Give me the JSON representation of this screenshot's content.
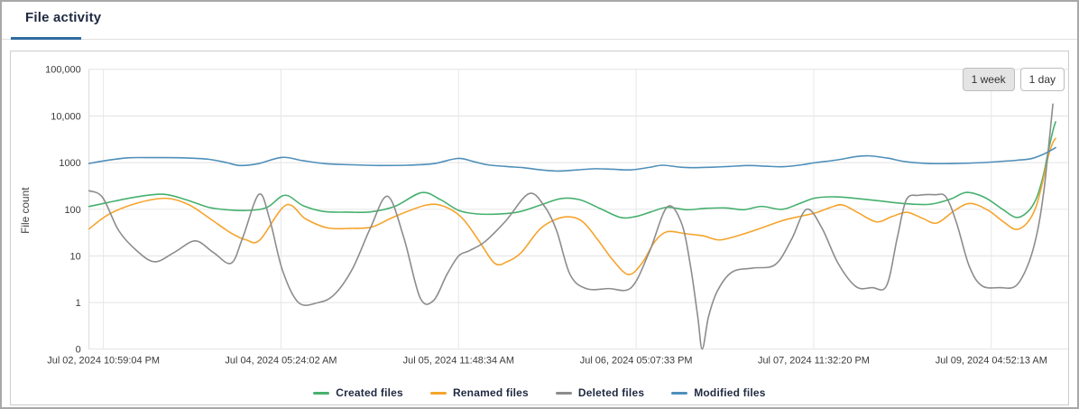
{
  "header": {
    "tabs": [
      {
        "label": "File activity",
        "active": true
      }
    ]
  },
  "controls": {
    "range_buttons": [
      {
        "label": "1 week",
        "active": true
      },
      {
        "label": "1 day",
        "active": false
      }
    ]
  },
  "chart_data": {
    "type": "line",
    "title": "File activity",
    "xlabel": "",
    "ylabel": "File count",
    "yscale": "log",
    "grid": true,
    "legend_position": "bottom",
    "ytick_labels": [
      "100,000",
      "10,000",
      "1000",
      "100",
      "10",
      "1",
      "0"
    ],
    "ytick_values": [
      100000,
      10000,
      1000,
      100,
      10,
      1,
      0
    ],
    "xticks": [
      {
        "pos": 113.0,
        "label": "Jul 02, 2024 10:59:04 PM"
      },
      {
        "pos": 310.5,
        "label": "Jul 04, 2024 05:24:02 AM"
      },
      {
        "pos": 508.0,
        "label": "Jul 05, 2024 11:48:34 AM"
      },
      {
        "pos": 705.5,
        "label": "Jul 06, 2024 05:07:33 PM"
      },
      {
        "pos": 903.0,
        "label": "Jul 07, 2024 11:32:20 PM"
      },
      {
        "pos": 1100.5,
        "label": "Jul 09, 2024 04:52:13 AM"
      }
    ],
    "x_units": "pixel column of source plot (plot spans 97 to 1188, data ends at 1172)",
    "series": [
      {
        "name": "Created files",
        "color": "#46b06e",
        "points": [
          [
            97,
            115
          ],
          [
            118,
            140
          ],
          [
            150,
            185
          ],
          [
            180,
            210
          ],
          [
            205,
            160
          ],
          [
            230,
            110
          ],
          [
            252,
            97
          ],
          [
            275,
            95
          ],
          [
            295,
            110
          ],
          [
            315,
            200
          ],
          [
            335,
            120
          ],
          [
            358,
            90
          ],
          [
            385,
            87
          ],
          [
            410,
            88
          ],
          [
            437,
            115
          ],
          [
            467,
            228
          ],
          [
            488,
            160
          ],
          [
            508,
            95
          ],
          [
            528,
            80
          ],
          [
            552,
            79
          ],
          [
            575,
            88
          ],
          [
            600,
            125
          ],
          [
            622,
            170
          ],
          [
            643,
            160
          ],
          [
            665,
            105
          ],
          [
            688,
            67
          ],
          [
            705,
            70
          ],
          [
            722,
            88
          ],
          [
            740,
            110
          ],
          [
            762,
            98
          ],
          [
            783,
            105
          ],
          [
            805,
            107
          ],
          [
            825,
            98
          ],
          [
            845,
            115
          ],
          [
            868,
            100
          ],
          [
            888,
            135
          ],
          [
            905,
            175
          ],
          [
            928,
            185
          ],
          [
            952,
            170
          ],
          [
            978,
            150
          ],
          [
            1005,
            132
          ],
          [
            1032,
            128
          ],
          [
            1055,
            165
          ],
          [
            1073,
            230
          ],
          [
            1093,
            180
          ],
          [
            1113,
            100
          ],
          [
            1128,
            67
          ],
          [
            1140,
            85
          ],
          [
            1150,
            160
          ],
          [
            1158,
            500
          ],
          [
            1164,
            1800
          ],
          [
            1169,
            4800
          ],
          [
            1172,
            7500
          ]
        ]
      },
      {
        "name": "Renamed files",
        "color": "#f5a42c",
        "points": [
          [
            97,
            38
          ],
          [
            120,
            80
          ],
          [
            150,
            135
          ],
          [
            182,
            172
          ],
          [
            208,
            125
          ],
          [
            232,
            62
          ],
          [
            255,
            31
          ],
          [
            272,
            22
          ],
          [
            287,
            22
          ],
          [
            316,
            123
          ],
          [
            338,
            62
          ],
          [
            362,
            40
          ],
          [
            388,
            39
          ],
          [
            412,
            42
          ],
          [
            437,
            70
          ],
          [
            472,
            123
          ],
          [
            492,
            115
          ],
          [
            512,
            65
          ],
          [
            530,
            22
          ],
          [
            548,
            7
          ],
          [
            562,
            7.5
          ],
          [
            578,
            12
          ],
          [
            600,
            40
          ],
          [
            625,
            68
          ],
          [
            645,
            56
          ],
          [
            663,
            22
          ],
          [
            680,
            8
          ],
          [
            697,
            4
          ],
          [
            712,
            7
          ],
          [
            726,
            20
          ],
          [
            740,
            33
          ],
          [
            760,
            30
          ],
          [
            780,
            27
          ],
          [
            798,
            22
          ],
          [
            818,
            27
          ],
          [
            842,
            38
          ],
          [
            868,
            57
          ],
          [
            890,
            72
          ],
          [
            905,
            84
          ],
          [
            922,
            110
          ],
          [
            935,
            124
          ],
          [
            952,
            85
          ],
          [
            973,
            54
          ],
          [
            990,
            70
          ],
          [
            1007,
            86
          ],
          [
            1024,
            64
          ],
          [
            1040,
            51
          ],
          [
            1060,
            95
          ],
          [
            1077,
            134
          ],
          [
            1097,
            95
          ],
          [
            1115,
            52
          ],
          [
            1128,
            37
          ],
          [
            1140,
            50
          ],
          [
            1150,
            110
          ],
          [
            1158,
            420
          ],
          [
            1164,
            1400
          ],
          [
            1169,
            2700
          ],
          [
            1172,
            3300
          ]
        ]
      },
      {
        "name": "Deleted files",
        "color": "#8c8c8c",
        "points": [
          [
            97,
            250
          ],
          [
            112,
            180
          ],
          [
            130,
            35
          ],
          [
            150,
            13
          ],
          [
            170,
            7.5
          ],
          [
            192,
            12
          ],
          [
            215,
            21
          ],
          [
            235,
            12
          ],
          [
            255,
            7
          ],
          [
            268,
            25
          ],
          [
            286,
            210
          ],
          [
            298,
            60
          ],
          [
            312,
            5
          ],
          [
            330,
            1
          ],
          [
            352,
            1
          ],
          [
            370,
            1.5
          ],
          [
            390,
            5.3
          ],
          [
            410,
            40
          ],
          [
            429,
            190
          ],
          [
            447,
            25
          ],
          [
            465,
            1.3
          ],
          [
            480,
            1.1
          ],
          [
            495,
            4
          ],
          [
            508,
            10
          ],
          [
            520,
            13
          ],
          [
            537,
            20
          ],
          [
            560,
            55
          ],
          [
            586,
            215
          ],
          [
            603,
            120
          ],
          [
            617,
            35
          ],
          [
            632,
            4
          ],
          [
            650,
            2
          ],
          [
            675,
            2
          ],
          [
            700,
            2.1
          ],
          [
            720,
            12
          ],
          [
            740,
            112
          ],
          [
            756,
            50
          ],
          [
            766,
            6
          ],
          [
            774,
            0.5
          ],
          [
            779,
            0
          ],
          [
            786,
            0.5
          ],
          [
            796,
            1.8
          ],
          [
            812,
            4.5
          ],
          [
            835,
            5.5
          ],
          [
            860,
            6.5
          ],
          [
            878,
            22
          ],
          [
            895,
            100
          ],
          [
            912,
            40
          ],
          [
            930,
            7
          ],
          [
            950,
            2.2
          ],
          [
            968,
            2.1
          ],
          [
            984,
            2.3
          ],
          [
            996,
            25
          ],
          [
            1006,
            160
          ],
          [
            1020,
            200
          ],
          [
            1038,
            205
          ],
          [
            1050,
            185
          ],
          [
            1062,
            50
          ],
          [
            1076,
            6
          ],
          [
            1090,
            2.3
          ],
          [
            1110,
            2.1
          ],
          [
            1128,
            2.3
          ],
          [
            1142,
            7
          ],
          [
            1152,
            35
          ],
          [
            1159,
            250
          ],
          [
            1164,
            2000
          ],
          [
            1169,
            18000
          ]
        ]
      },
      {
        "name": "Modified files",
        "color": "#4f8fba",
        "points": [
          [
            97,
            960
          ],
          [
            115,
            1100
          ],
          [
            140,
            1270
          ],
          [
            170,
            1280
          ],
          [
            200,
            1270
          ],
          [
            230,
            1180
          ],
          [
            250,
            1000
          ],
          [
            265,
            870
          ],
          [
            285,
            950
          ],
          [
            312,
            1300
          ],
          [
            335,
            1100
          ],
          [
            360,
            950
          ],
          [
            390,
            900
          ],
          [
            420,
            870
          ],
          [
            450,
            880
          ],
          [
            480,
            950
          ],
          [
            507,
            1230
          ],
          [
            525,
            1050
          ],
          [
            540,
            900
          ],
          [
            560,
            830
          ],
          [
            580,
            780
          ],
          [
            600,
            700
          ],
          [
            620,
            660
          ],
          [
            640,
            700
          ],
          [
            660,
            740
          ],
          [
            680,
            720
          ],
          [
            700,
            700
          ],
          [
            720,
            790
          ],
          [
            735,
            880
          ],
          [
            755,
            800
          ],
          [
            770,
            780
          ],
          [
            790,
            800
          ],
          [
            810,
            830
          ],
          [
            830,
            870
          ],
          [
            850,
            840
          ],
          [
            870,
            820
          ],
          [
            890,
            900
          ],
          [
            905,
            1000
          ],
          [
            930,
            1150
          ],
          [
            950,
            1350
          ],
          [
            965,
            1400
          ],
          [
            985,
            1250
          ],
          [
            1005,
            1050
          ],
          [
            1030,
            960
          ],
          [
            1060,
            960
          ],
          [
            1090,
            1000
          ],
          [
            1110,
            1060
          ],
          [
            1130,
            1130
          ],
          [
            1145,
            1220
          ],
          [
            1158,
            1500
          ],
          [
            1166,
            1800
          ],
          [
            1172,
            2100
          ]
        ]
      }
    ]
  }
}
